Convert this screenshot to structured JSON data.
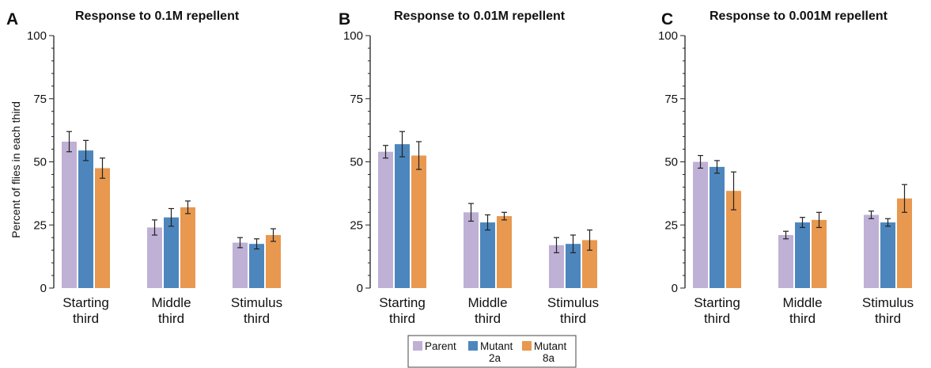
{
  "chart_data": [
    {
      "type": "bar",
      "panel": "A",
      "title": "Response to 0.1M repellent",
      "ylabel": "Percent of flies in each third",
      "ylim": [
        0,
        100
      ],
      "yticks": [
        0,
        25,
        50,
        75,
        100
      ],
      "categories": [
        [
          "Starting",
          "third"
        ],
        [
          "Middle",
          "third"
        ],
        [
          "Stimulus",
          "third"
        ]
      ],
      "series": [
        {
          "name": "Parent",
          "values": [
            58,
            24,
            18
          ],
          "errors": [
            4,
            3,
            2
          ]
        },
        {
          "name": "Mutant 2a",
          "values": [
            54.5,
            28,
            17.5
          ],
          "errors": [
            4,
            3.5,
            2
          ]
        },
        {
          "name": "Mutant 8a",
          "values": [
            47.5,
            32,
            21
          ],
          "errors": [
            4,
            2.5,
            2.5
          ]
        }
      ]
    },
    {
      "type": "bar",
      "panel": "B",
      "title": "Response to 0.01M repellent",
      "ylabel": "",
      "ylim": [
        0,
        100
      ],
      "yticks": [
        0,
        25,
        50,
        75,
        100
      ],
      "categories": [
        [
          "Starting",
          "third"
        ],
        [
          "Middle",
          "third"
        ],
        [
          "Stimulus",
          "third"
        ]
      ],
      "series": [
        {
          "name": "Parent",
          "values": [
            54,
            30,
            17
          ],
          "errors": [
            2.5,
            3.5,
            3
          ]
        },
        {
          "name": "Mutant 2a",
          "values": [
            57,
            26,
            17.5
          ],
          "errors": [
            5,
            3,
            3.5
          ]
        },
        {
          "name": "Mutant 8a",
          "values": [
            52.5,
            28.5,
            19
          ],
          "errors": [
            5.5,
            1.5,
            4
          ]
        }
      ]
    },
    {
      "type": "bar",
      "panel": "C",
      "title": "Response to 0.001M repellent",
      "ylabel": "",
      "ylim": [
        0,
        100
      ],
      "yticks": [
        0,
        25,
        50,
        75,
        100
      ],
      "categories": [
        [
          "Starting",
          "third"
        ],
        [
          "Middle",
          "third"
        ],
        [
          "Stimulus",
          "third"
        ]
      ],
      "series": [
        {
          "name": "Parent",
          "values": [
            50,
            21,
            29
          ],
          "errors": [
            2.5,
            1.5,
            1.5
          ]
        },
        {
          "name": "Mutant 2a",
          "values": [
            48,
            26,
            26
          ],
          "errors": [
            2.5,
            2,
            1.5
          ]
        },
        {
          "name": "Mutant 8a",
          "values": [
            38.5,
            27,
            35.5
          ],
          "errors": [
            7.5,
            3,
            5.5
          ]
        }
      ]
    }
  ],
  "legend": {
    "items": [
      {
        "lines": [
          "Parent"
        ],
        "color": "#bfb0d6"
      },
      {
        "lines": [
          "Mutant",
          "2a"
        ],
        "color": "#4d86bd"
      },
      {
        "lines": [
          "Mutant",
          "8a"
        ],
        "color": "#e8984f"
      }
    ]
  },
  "colors": {
    "parent": "#bfb0d6",
    "mutant_2a": "#4d86bd",
    "mutant_8a": "#e8984f",
    "axis": "#222222"
  }
}
